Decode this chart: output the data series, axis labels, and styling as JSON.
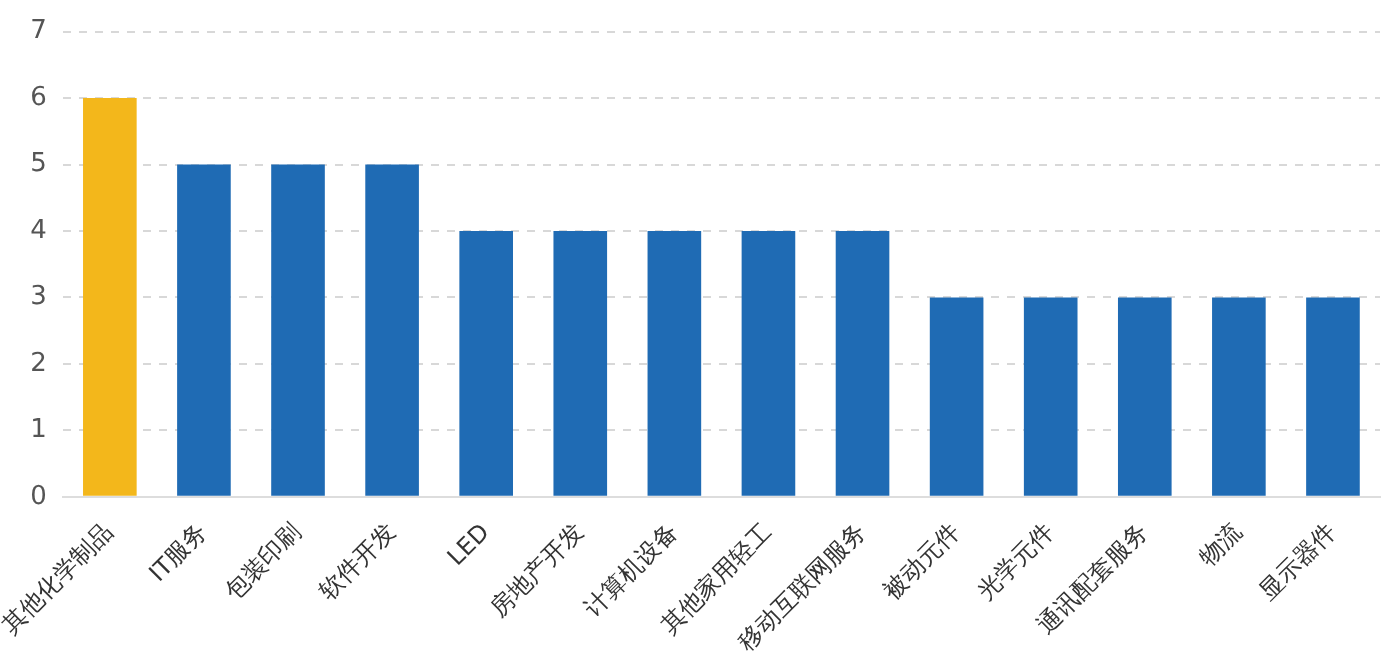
{
  "chart_data": {
    "type": "bar",
    "categories": [
      "其他化学制品",
      "IT服务",
      "包装印刷",
      "软件开发",
      "LED",
      "房地产开发",
      "计算机设备",
      "其他家用轻工",
      "移动互联网服务",
      "被动元件",
      "光学元件",
      "通讯配套服务",
      "物流",
      "显示器件"
    ],
    "values": [
      6,
      5,
      5,
      5,
      4,
      4,
      4,
      4,
      4,
      3,
      3,
      3,
      3,
      3
    ],
    "colors": [
      "#f3b71b",
      "#1f6bb4",
      "#1f6bb4",
      "#1f6bb4",
      "#1f6bb4",
      "#1f6bb4",
      "#1f6bb4",
      "#1f6bb4",
      "#1f6bb4",
      "#1f6bb4",
      "#1f6bb4",
      "#1f6bb4",
      "#1f6bb4",
      "#1f6bb4"
    ],
    "ylim": [
      0,
      7
    ],
    "yticks": [
      0,
      1,
      2,
      3,
      4,
      5,
      6,
      7
    ],
    "grid": "y",
    "legend": false
  }
}
